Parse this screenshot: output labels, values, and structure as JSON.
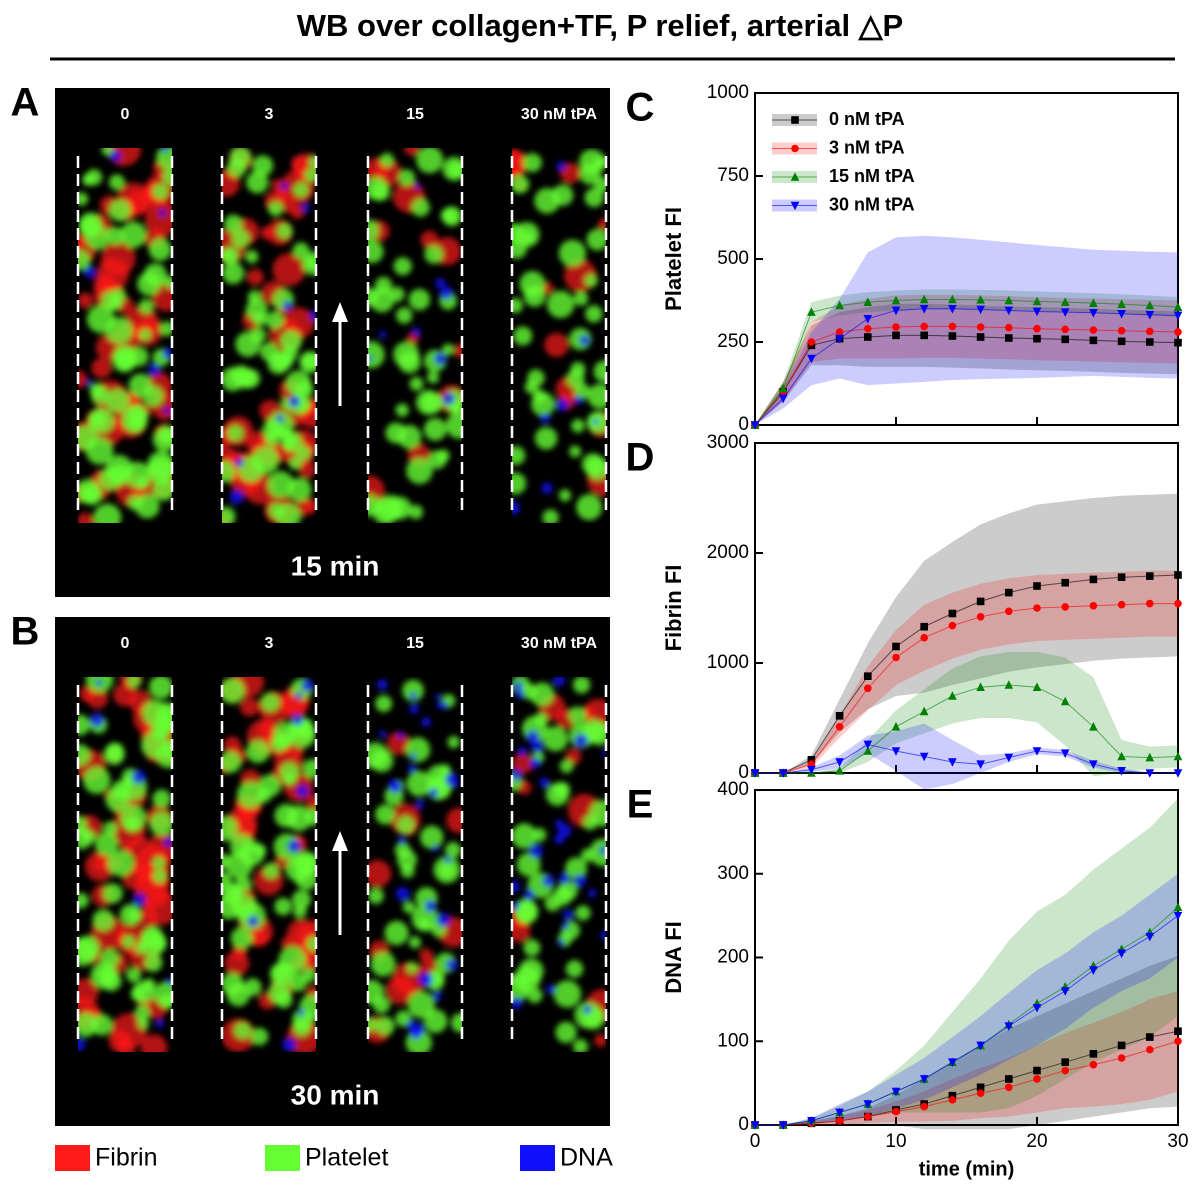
{
  "figure": {
    "title": "WB over collagen+TF, P relief, arterial △P",
    "panels": [
      {
        "label": "A",
        "time": "15 min",
        "lanes": [
          "0",
          "3",
          "15",
          "30 nM tPA"
        ]
      },
      {
        "label": "B",
        "time": "30 min",
        "lanes": [
          "0",
          "3",
          "15",
          "30 nM tPA"
        ]
      }
    ],
    "legend": [
      {
        "name": "Fibrin",
        "color": "#ff1a1a"
      },
      {
        "name": "Platelet",
        "color": "#66ff33"
      },
      {
        "name": "DNA",
        "color": "#1010ff"
      }
    ]
  },
  "chart_data": [
    {
      "type": "line",
      "panel": "C",
      "ylabel": "Platelet FI",
      "x": [
        0,
        2,
        4,
        6,
        8,
        10,
        12,
        14,
        16,
        18,
        20,
        22,
        24,
        26,
        28,
        30
      ],
      "xlim": [
        0,
        30
      ],
      "xticks": [
        0,
        10,
        20,
        30
      ],
      "show_xtick_labels": false,
      "ylim": [
        0,
        1000
      ],
      "yticks": [
        0,
        250,
        500,
        750,
        1000
      ],
      "legend": "upper left",
      "series": [
        {
          "name": "0 nM tPA",
          "color": "#000000",
          "marker": "square",
          "values": [
            0,
            100,
            240,
            260,
            265,
            270,
            270,
            268,
            265,
            262,
            260,
            258,
            255,
            252,
            250,
            248
          ],
          "error": [
            0,
            30,
            60,
            80,
            90,
            95,
            95,
            95,
            95,
            95,
            95,
            95,
            95,
            95,
            95,
            95
          ]
        },
        {
          "name": "3 nM tPA",
          "color": "#ff0000",
          "marker": "circle",
          "values": [
            0,
            100,
            250,
            280,
            290,
            295,
            297,
            297,
            295,
            293,
            290,
            288,
            286,
            284,
            282,
            280
          ],
          "error": [
            0,
            30,
            60,
            80,
            90,
            95,
            95,
            95,
            95,
            95,
            95,
            95,
            95,
            95,
            95,
            95
          ]
        },
        {
          "name": "15 nM tPA",
          "color": "#008000",
          "marker": "triangle-up",
          "values": [
            0,
            110,
            340,
            360,
            370,
            375,
            378,
            378,
            377,
            375,
            372,
            370,
            367,
            364,
            360,
            355
          ],
          "error": [
            0,
            20,
            30,
            30,
            30,
            30,
            30,
            30,
            30,
            30,
            30,
            30,
            30,
            30,
            30,
            30
          ]
        },
        {
          "name": "30 nM tPA",
          "color": "#0000ff",
          "marker": "triangle-down",
          "values": [
            0,
            80,
            200,
            260,
            320,
            345,
            350,
            350,
            348,
            345,
            342,
            340,
            338,
            335,
            332,
            330
          ],
          "error": [
            0,
            30,
            80,
            120,
            200,
            220,
            220,
            215,
            210,
            205,
            200,
            195,
            190,
            190,
            190,
            190
          ]
        }
      ]
    },
    {
      "type": "line",
      "panel": "D",
      "ylabel": "Fibrin FI",
      "x": [
        0,
        2,
        4,
        6,
        8,
        10,
        12,
        14,
        16,
        18,
        20,
        22,
        24,
        26,
        28,
        30
      ],
      "xlim": [
        0,
        30
      ],
      "xticks": [
        0,
        10,
        20,
        30
      ],
      "show_xtick_labels": false,
      "ylim": [
        0,
        3000
      ],
      "yticks": [
        0,
        1000,
        2000,
        3000
      ],
      "series": [
        {
          "color": "#000000",
          "marker": "square",
          "values": [
            0,
            0,
            120,
            520,
            880,
            1150,
            1330,
            1450,
            1560,
            1640,
            1700,
            1730,
            1760,
            1780,
            1790,
            1800
          ],
          "error": [
            0,
            0,
            40,
            150,
            300,
            450,
            600,
            650,
            700,
            720,
            740,
            740,
            740,
            740,
            740,
            740
          ]
        },
        {
          "color": "#ff0000",
          "marker": "circle",
          "values": [
            0,
            0,
            80,
            420,
            770,
            1050,
            1230,
            1340,
            1420,
            1470,
            1500,
            1510,
            1520,
            1530,
            1540,
            1540
          ],
          "error": [
            0,
            0,
            30,
            100,
            200,
            250,
            300,
            300,
            300,
            300,
            300,
            300,
            300,
            300,
            300,
            300
          ]
        },
        {
          "color": "#008000",
          "marker": "triangle-up",
          "values": [
            0,
            0,
            0,
            20,
            200,
            420,
            560,
            700,
            780,
            800,
            780,
            650,
            420,
            150,
            140,
            150
          ],
          "error": [
            0,
            0,
            0,
            20,
            100,
            150,
            200,
            250,
            280,
            300,
            320,
            400,
            450,
            150,
            100,
            100
          ]
        },
        {
          "color": "#0000ff",
          "marker": "triangle-down",
          "values": [
            0,
            0,
            30,
            100,
            260,
            200,
            150,
            100,
            80,
            140,
            200,
            180,
            80,
            20,
            0,
            0
          ],
          "error": [
            0,
            0,
            20,
            60,
            80,
            180,
            300,
            200,
            80,
            40,
            30,
            30,
            30,
            20,
            0,
            0
          ]
        }
      ]
    },
    {
      "type": "line",
      "panel": "E",
      "ylabel": "DNA FI",
      "xlabel": "time (min)",
      "x": [
        0,
        2,
        4,
        6,
        8,
        10,
        12,
        14,
        16,
        18,
        20,
        22,
        24,
        26,
        28,
        30
      ],
      "xlim": [
        0,
        30
      ],
      "xticks": [
        0,
        10,
        20,
        30
      ],
      "show_xtick_labels": true,
      "ylim": [
        0,
        400
      ],
      "yticks": [
        0,
        100,
        200,
        300,
        400
      ],
      "series": [
        {
          "color": "#000000",
          "marker": "square",
          "values": [
            0,
            0,
            2,
            5,
            10,
            18,
            25,
            35,
            45,
            55,
            65,
            75,
            85,
            95,
            105,
            112
          ],
          "error": [
            0,
            0,
            3,
            6,
            10,
            18,
            30,
            40,
            50,
            60,
            65,
            70,
            75,
            80,
            85,
            90
          ]
        },
        {
          "color": "#ff0000",
          "marker": "circle",
          "values": [
            0,
            0,
            2,
            5,
            10,
            16,
            22,
            30,
            38,
            45,
            55,
            65,
            72,
            80,
            90,
            100
          ],
          "error": [
            0,
            0,
            2,
            5,
            8,
            12,
            18,
            25,
            30,
            35,
            40,
            45,
            50,
            55,
            60,
            60
          ]
        },
        {
          "color": "#008000",
          "marker": "triangle-up",
          "values": [
            0,
            0,
            5,
            15,
            25,
            40,
            55,
            75,
            95,
            120,
            145,
            165,
            190,
            210,
            230,
            260
          ],
          "error": [
            0,
            0,
            3,
            8,
            15,
            25,
            40,
            60,
            80,
            100,
            110,
            110,
            115,
            120,
            125,
            130
          ]
        },
        {
          "color": "#0000ff",
          "marker": "triangle-down",
          "values": [
            0,
            0,
            5,
            15,
            25,
            40,
            55,
            75,
            95,
            118,
            140,
            160,
            185,
            205,
            225,
            250
          ],
          "error": [
            0,
            0,
            3,
            10,
            15,
            20,
            25,
            30,
            35,
            40,
            45,
            45,
            45,
            45,
            50,
            50
          ]
        }
      ]
    }
  ]
}
